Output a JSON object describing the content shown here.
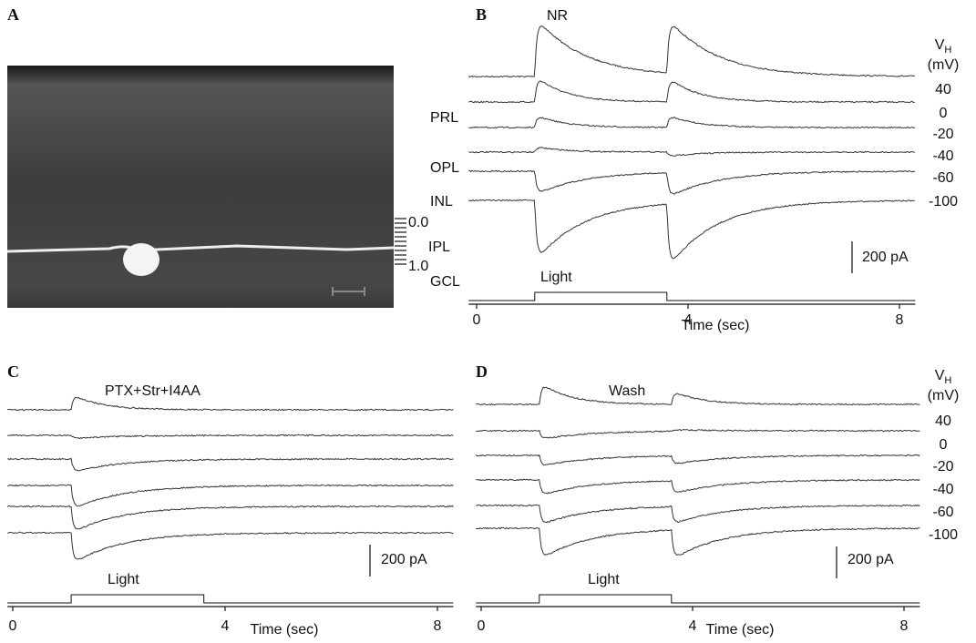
{
  "panels": {
    "A": {
      "label": "A",
      "layers": {
        "prl": "PRL",
        "opl": "OPL",
        "inl": "INL",
        "ipl": "IPL",
        "gcl": "GCL"
      },
      "depth_ticks": [
        "0.0",
        "1.0"
      ]
    },
    "B": {
      "label": "B",
      "title": "NR",
      "vh_symbol": "V",
      "vh_sub": "H",
      "vh_unit": "(mV)",
      "traces": [
        {
          "holding": 40,
          "on": 380,
          "off": 350
        },
        {
          "holding": 0,
          "on": 170,
          "off": 160
        },
        {
          "holding": -20,
          "on": 80,
          "off": 80
        },
        {
          "holding": -40,
          "on": 35,
          "off": -30
        },
        {
          "holding": -60,
          "on": -150,
          "off": -160
        },
        {
          "holding": -100,
          "on": -390,
          "off": -410
        }
      ],
      "scale_bar": {
        "value": 200,
        "label": "200 pA"
      },
      "stimulus": "Light",
      "light": [
        1.1,
        3.6
      ],
      "xlim": [
        -0.15,
        8.3
      ],
      "xticks": [
        0,
        4,
        8
      ],
      "xlabel": "Time (sec)"
    },
    "C": {
      "label": "C",
      "title": "PTX+Str+I4AA",
      "traces": [
        {
          "on": 100,
          "off": 0
        },
        {
          "on": -20,
          "off": 0
        },
        {
          "on": -85,
          "off": 0
        },
        {
          "on": -155,
          "off": 0
        },
        {
          "on": -170,
          "off": 0
        },
        {
          "on": -200,
          "off": 0
        }
      ],
      "scale_bar": {
        "value": 200,
        "label": "200 pA"
      },
      "stimulus": "Light",
      "light": [
        1.1,
        3.6
      ],
      "xlim": [
        -0.1,
        8.3
      ],
      "xticks": [
        0,
        4,
        8
      ],
      "xlabel": "Time (sec)"
    },
    "D": {
      "label": "D",
      "title": "Wash",
      "vh_symbol": "V",
      "vh_sub": "H",
      "vh_unit": "(mV)",
      "traces": [
        {
          "holding": 40,
          "on": 140,
          "off": 85
        },
        {
          "holding": 0,
          "on": -55,
          "off": 10
        },
        {
          "holding": -20,
          "on": -70,
          "off": -55
        },
        {
          "holding": -40,
          "on": -100,
          "off": -85
        },
        {
          "holding": -60,
          "on": -125,
          "off": -115
        },
        {
          "holding": -100,
          "on": -200,
          "off": -190
        }
      ],
      "scale_bar": {
        "value": 200,
        "label": "200 pA"
      },
      "stimulus": "Light",
      "light": [
        1.1,
        3.6
      ],
      "xlim": [
        -0.1,
        8.3
      ],
      "xticks": [
        0,
        4,
        8
      ],
      "xlabel": "Time (sec)"
    }
  }
}
